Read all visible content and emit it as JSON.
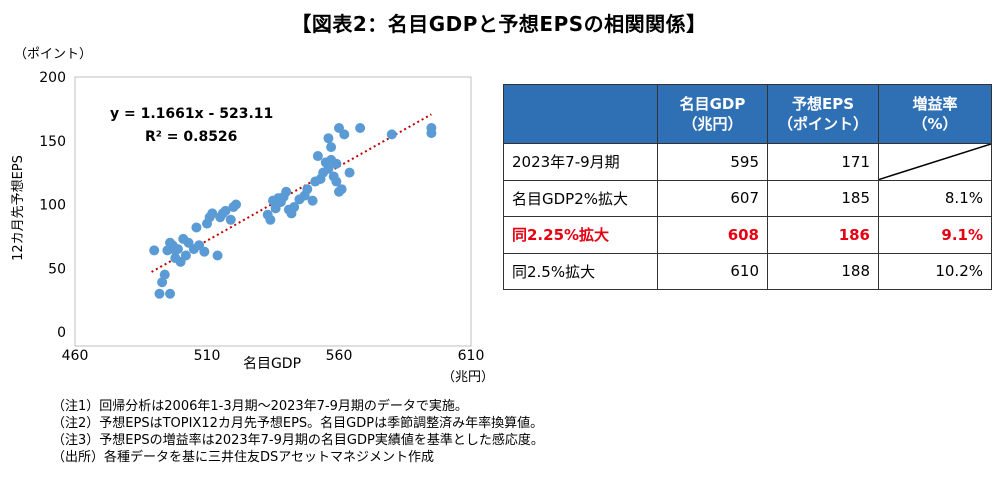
{
  "title": "【図表2：名目GDPと予想EPSの相関関係】",
  "chart_data": {
    "type": "scatter",
    "ylabel": "12カ月先予想EPS",
    "y_unit": "（ポイント）",
    "xlabel": "名目GDP",
    "x_unit": "（兆円）",
    "xlim": [
      460,
      610
    ],
    "ylim": [
      0,
      200
    ],
    "xticks": [
      460,
      510,
      560,
      610
    ],
    "yticks": [
      0,
      50,
      100,
      150,
      200
    ],
    "grid": false,
    "point_color": "#5b9bd5",
    "trend_color": "#c00000",
    "trend": {
      "slope": 1.1661,
      "intercept": -523.11,
      "x_from": 489,
      "x_to": 595
    },
    "equation": "y = 1.1661x - 523.11",
    "r2": "R² = 0.8526",
    "points": [
      [
        490,
        64
      ],
      [
        492,
        30
      ],
      [
        493,
        39
      ],
      [
        494,
        45
      ],
      [
        496,
        30
      ],
      [
        495,
        64
      ],
      [
        496,
        70
      ],
      [
        497,
        68
      ],
      [
        498,
        64
      ],
      [
        499,
        65
      ],
      [
        498,
        58
      ],
      [
        500,
        55
      ],
      [
        501,
        73
      ],
      [
        502,
        60
      ],
      [
        503,
        70
      ],
      [
        505,
        65
      ],
      [
        506,
        82
      ],
      [
        507,
        68
      ],
      [
        509,
        63
      ],
      [
        510,
        85
      ],
      [
        511,
        90
      ],
      [
        512,
        93
      ],
      [
        514,
        60
      ],
      [
        515,
        90
      ],
      [
        516,
        93
      ],
      [
        517,
        95
      ],
      [
        519,
        88
      ],
      [
        520,
        98
      ],
      [
        521,
        100
      ],
      [
        533,
        92
      ],
      [
        534,
        88
      ],
      [
        535,
        103
      ],
      [
        536,
        97
      ],
      [
        537,
        105
      ],
      [
        538,
        102
      ],
      [
        539,
        106
      ],
      [
        540,
        110
      ],
      [
        541,
        96
      ],
      [
        542,
        93
      ],
      [
        543,
        98
      ],
      [
        545,
        104
      ],
      [
        547,
        107
      ],
      [
        548,
        112
      ],
      [
        550,
        103
      ],
      [
        551,
        118
      ],
      [
        552,
        138
      ],
      [
        553,
        120
      ],
      [
        554,
        125
      ],
      [
        555,
        133
      ],
      [
        556,
        152
      ],
      [
        557,
        145
      ],
      [
        556,
        128
      ],
      [
        557,
        135
      ],
      [
        558,
        122
      ],
      [
        559,
        132
      ],
      [
        560,
        160
      ],
      [
        562,
        155
      ],
      [
        564,
        125
      ],
      [
        561,
        112
      ],
      [
        560,
        110
      ],
      [
        559,
        118
      ],
      [
        568,
        160
      ],
      [
        580,
        155
      ],
      [
        595,
        160
      ],
      [
        595,
        156
      ]
    ]
  },
  "table": {
    "headers": [
      [
        "",
        ""
      ],
      [
        "名目GDP",
        "（兆円）"
      ],
      [
        "予想EPS",
        "（ポイント）"
      ],
      [
        "増益率",
        "（%）"
      ]
    ],
    "rows": [
      {
        "label": "2023年7-9月期",
        "gdp": "595",
        "eps": "171",
        "growth": ""
      },
      {
        "label": "名目GDP2%拡大",
        "gdp": "607",
        "eps": "185",
        "growth": "8.1%"
      },
      {
        "label": "同2.25%拡大",
        "gdp": "608",
        "eps": "186",
        "growth": "9.1%",
        "highlight": true
      },
      {
        "label": "同2.5%拡大",
        "gdp": "610",
        "eps": "188",
        "growth": "10.2%"
      }
    ],
    "highlight_color": "#e60012",
    "header_color": "#2f6fb4"
  },
  "notes": [
    "（注1）回帰分析は2006年1-3月期～2023年7-9月期のデータで実施。",
    "（注2）予想EPSはTOPIX12カ月先予想EPS。名目GDPは季節調整済み年率換算値。",
    "（注3）予想EPSの増益率は2023年7-9月期の名目GDP実績値を基準とした感応度。",
    "（出所）各種データを基に三井住友DSアセットマネジメント作成"
  ]
}
